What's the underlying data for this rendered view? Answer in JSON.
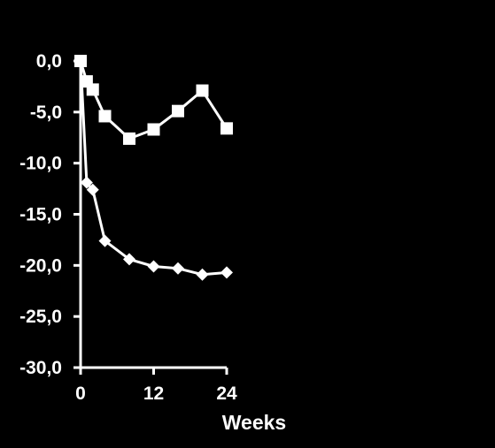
{
  "chart_data": {
    "type": "line",
    "title": "",
    "xlabel": "Weeks",
    "ylabel": "",
    "xlim": [
      0,
      24
    ],
    "ylim": [
      -30,
      0
    ],
    "x_ticks": [
      0,
      12,
      24
    ],
    "x_tick_labels": [
      "0",
      "12",
      "24"
    ],
    "y_ticks": [
      0,
      -5,
      -10,
      -15,
      -20,
      -25,
      -30
    ],
    "y_tick_labels": [
      "0,0",
      "-5,0",
      "-10,0",
      "-15,0",
      "-20,0",
      "-25,0",
      "-30,0"
    ],
    "grid": false,
    "legend": "none",
    "background_color": "#000000",
    "foreground_color": "#ffffff",
    "series": [
      {
        "marker": "square",
        "color": "#ffffff",
        "points": [
          {
            "x": 0,
            "y": 0.0
          },
          {
            "x": 1,
            "y": -2.0
          },
          {
            "x": 2,
            "y": -2.8
          },
          {
            "x": 4,
            "y": -5.4
          },
          {
            "x": 8,
            "y": -7.6
          },
          {
            "x": 12,
            "y": -6.7
          },
          {
            "x": 16,
            "y": -4.9
          },
          {
            "x": 20,
            "y": -2.9
          },
          {
            "x": 24,
            "y": -6.6
          }
        ]
      },
      {
        "marker": "diamond",
        "color": "#ffffff",
        "points": [
          {
            "x": 0,
            "y": 0.0
          },
          {
            "x": 1,
            "y": -11.9
          },
          {
            "x": 2,
            "y": -12.6
          },
          {
            "x": 4,
            "y": -17.6
          },
          {
            "x": 8,
            "y": -19.4
          },
          {
            "x": 12,
            "y": -20.1
          },
          {
            "x": 16,
            "y": -20.3
          },
          {
            "x": 20,
            "y": -20.9
          },
          {
            "x": 24,
            "y": -20.7
          }
        ]
      }
    ]
  }
}
